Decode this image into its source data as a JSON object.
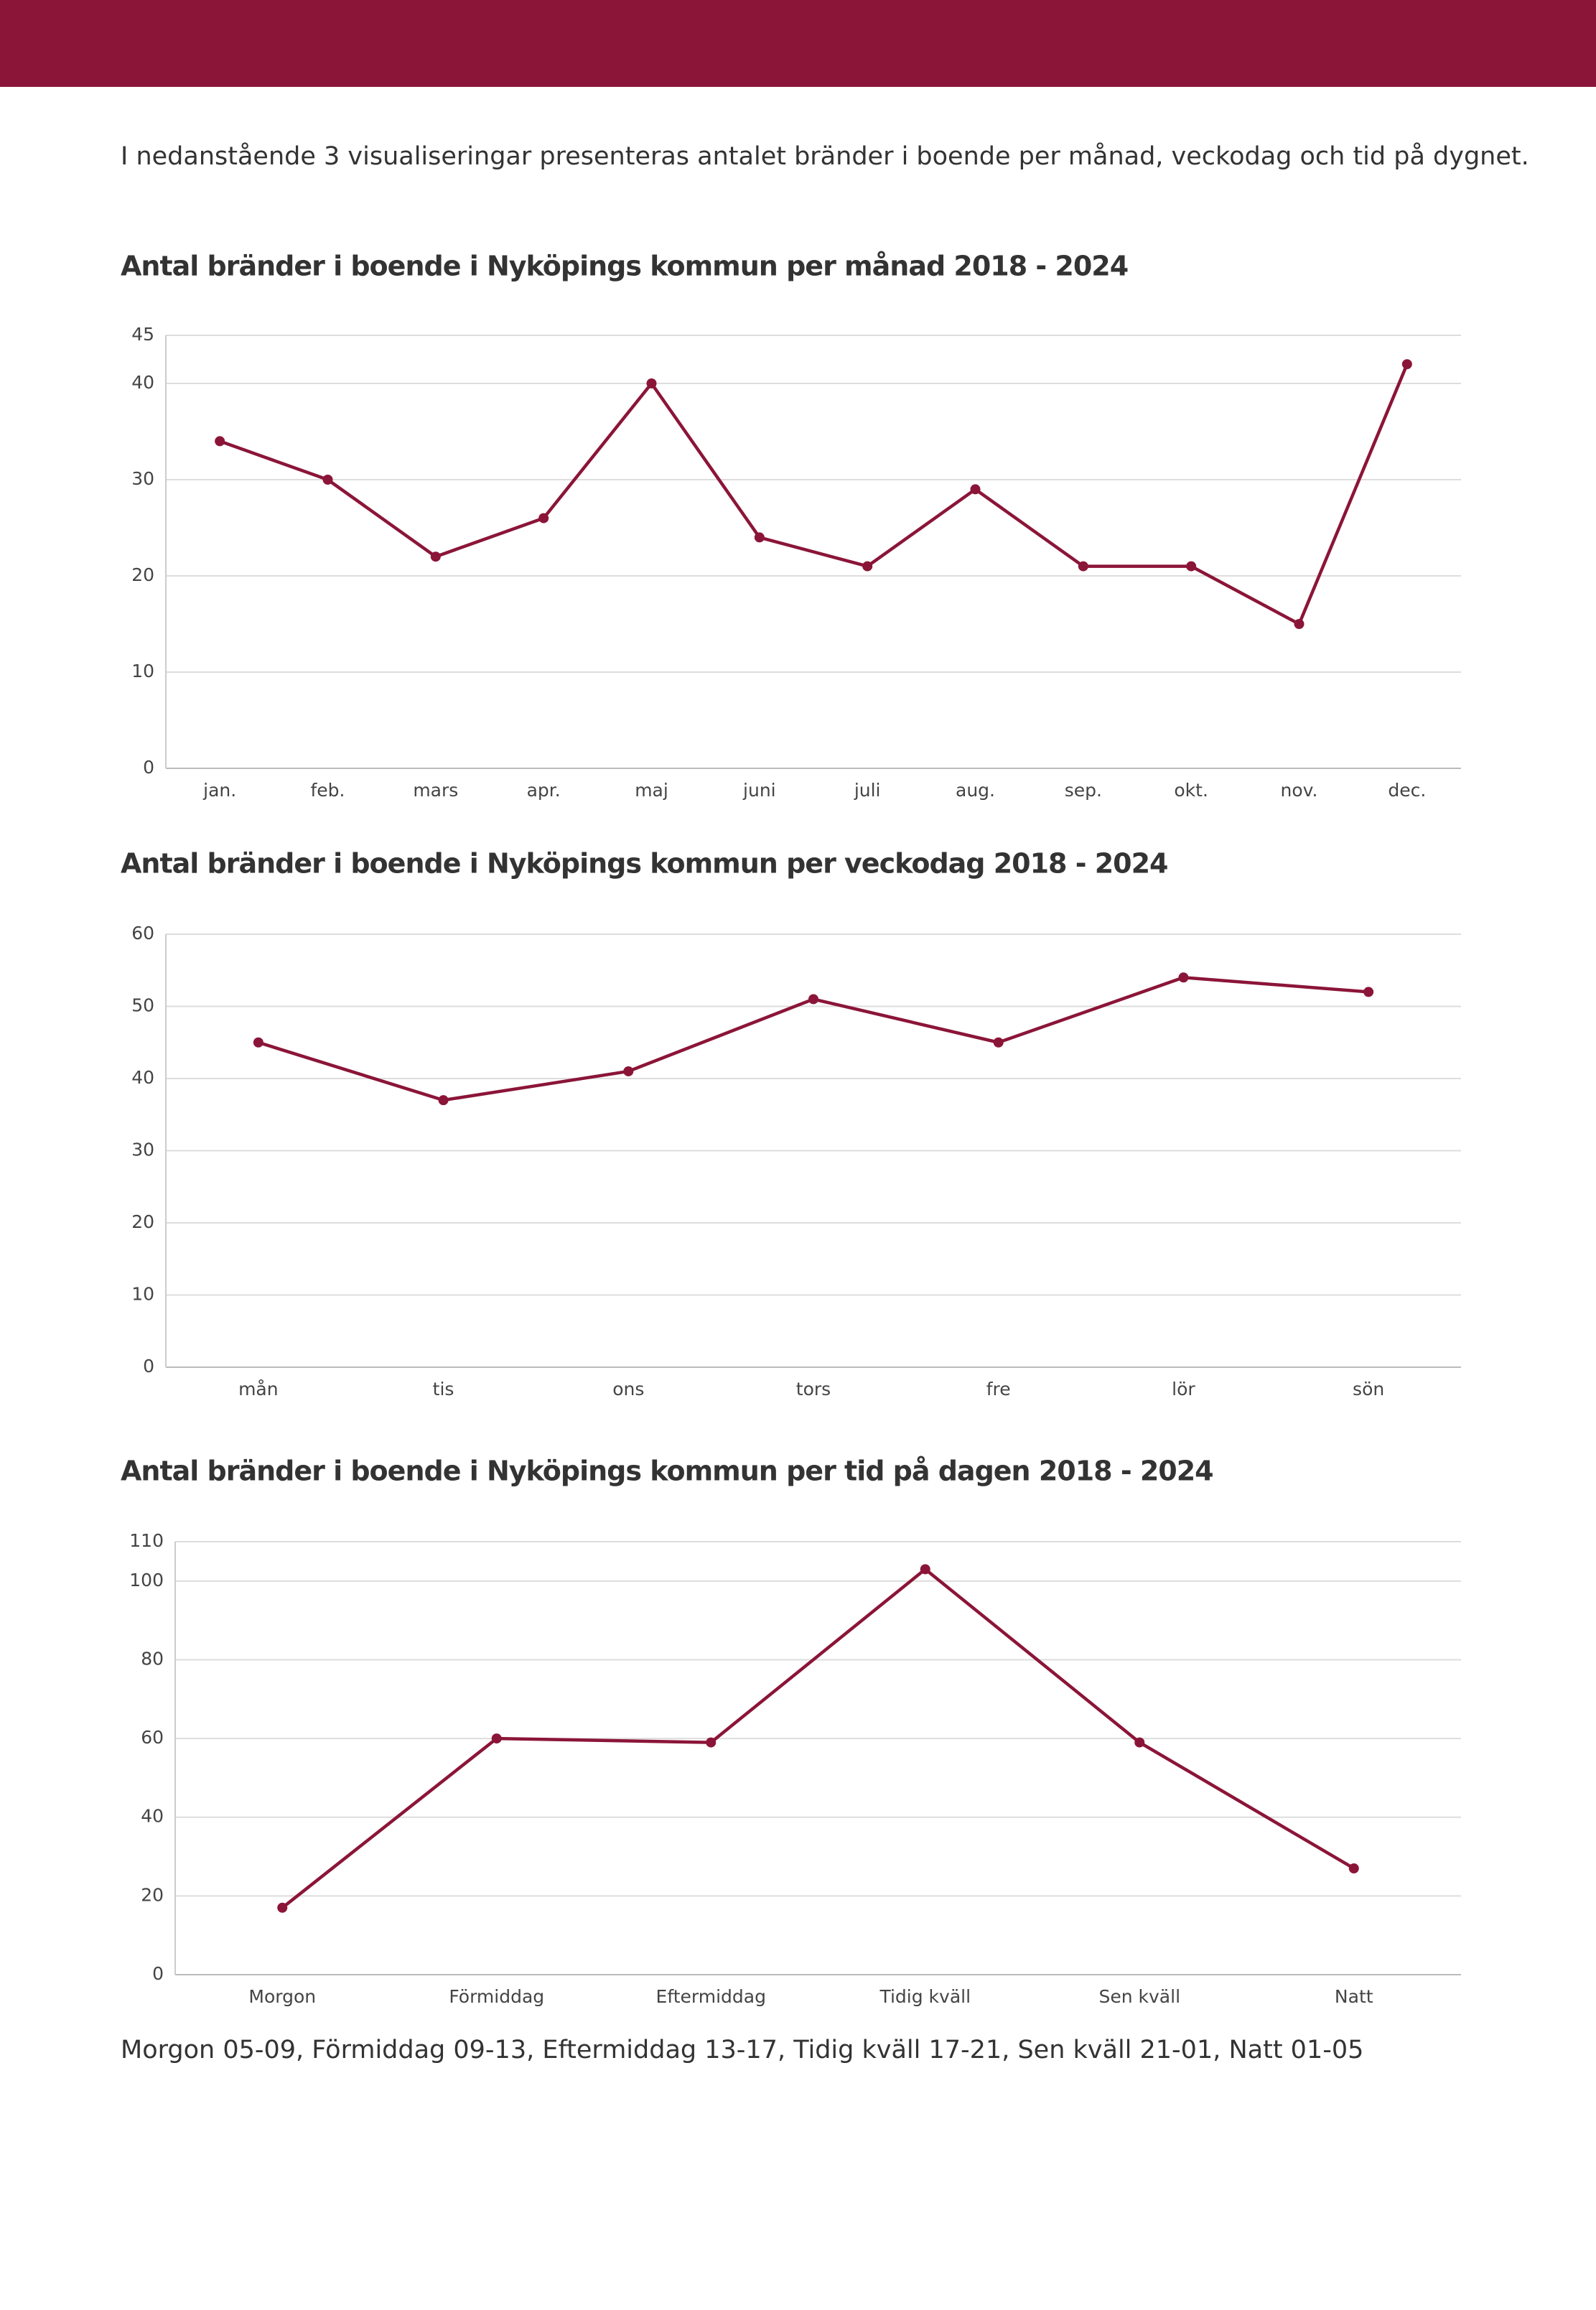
{
  "intro": "I nedanstående 3 visualiseringar presenteras antalet bränder i boende per månad, veckodag och tid på dygnet.",
  "chart_data": [
    {
      "type": "line",
      "title": "Antal bränder i boende i Nyköpings kommun per månad 2018 - 2024",
      "categories": [
        "jan.",
        "feb.",
        "mars",
        "apr.",
        "maj",
        "juni",
        "juli",
        "aug.",
        "sep.",
        "okt.",
        "nov.",
        "dec."
      ],
      "values": [
        34,
        30,
        22,
        26,
        40,
        24,
        21,
        29,
        21,
        21,
        15,
        42
      ],
      "color": "#8b1538",
      "ylim": [
        0,
        45
      ],
      "yticks": [
        0,
        10,
        20,
        30,
        40,
        45
      ],
      "grid": true
    },
    {
      "type": "line",
      "title": "Antal bränder i boende i Nyköpings kommun per veckodag 2018 - 2024",
      "categories": [
        "mån",
        "tis",
        "ons",
        "tors",
        "fre",
        "lör",
        "sön"
      ],
      "values": [
        45,
        37,
        41,
        51,
        45,
        54,
        52
      ],
      "color": "#8b1538",
      "ylim": [
        0,
        60
      ],
      "yticks": [
        0,
        10,
        20,
        30,
        40,
        50,
        60
      ],
      "grid": true
    },
    {
      "type": "line",
      "title": "Antal bränder i boende i Nyköpings kommun per tid på dagen 2018 - 2024",
      "categories": [
        "Morgon",
        "Förmiddag",
        "Eftermiddag",
        "Tidig kväll",
        "Sen kväll",
        "Natt"
      ],
      "values": [
        17,
        60,
        59,
        103,
        59,
        27
      ],
      "color": "#8b1538",
      "ylim": [
        0,
        110
      ],
      "yticks": [
        0,
        20,
        40,
        60,
        80,
        100,
        110
      ],
      "grid": true
    }
  ],
  "footnote": "Morgon 05-09, Förmiddag 09-13, Eftermiddag 13-17, Tidig kväll 17-21, Sen kväll 21-01, Natt 01-05"
}
